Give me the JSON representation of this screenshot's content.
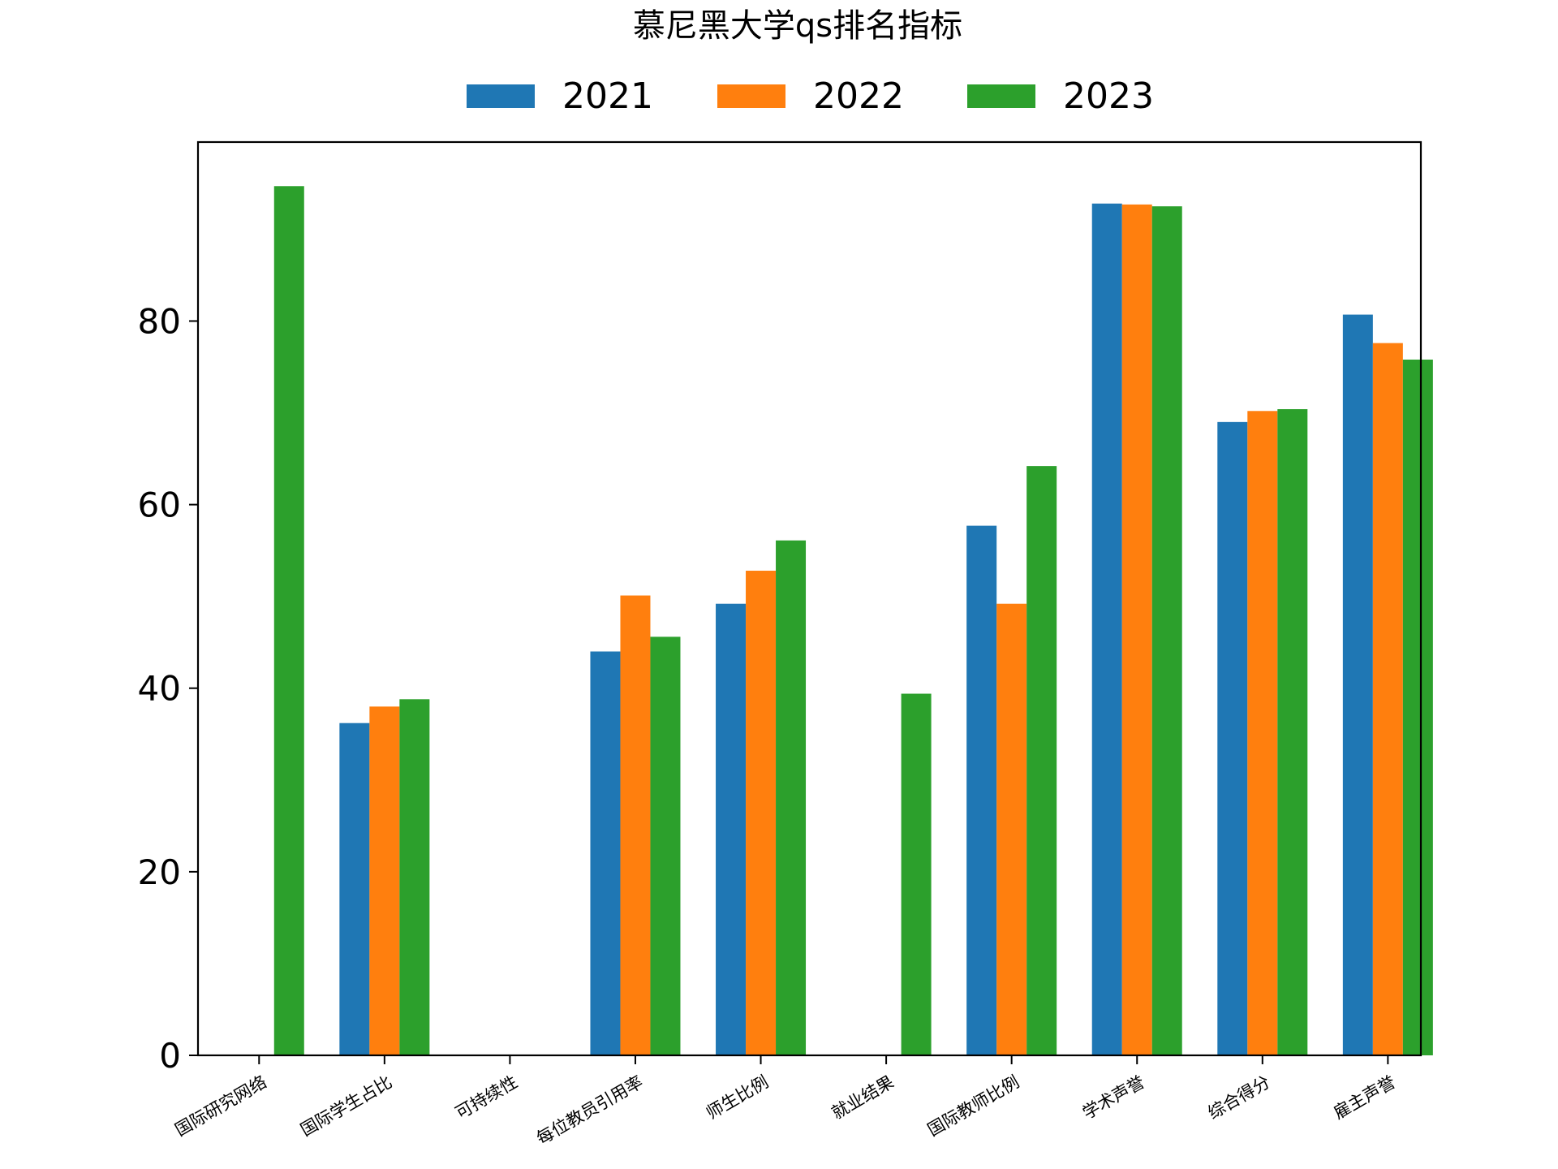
{
  "chart_data": {
    "type": "bar",
    "title": "慕尼黑大学qs排名指标",
    "xlabel": "",
    "ylabel": "",
    "categories": [
      "国际研究网络",
      "国际学生占比",
      "可持续性",
      "每位教员引用率",
      "师生比例",
      "就业结果",
      "国际教师比例",
      "学术声誉",
      "综合得分",
      "雇主声誉"
    ],
    "series": [
      {
        "name": "2021",
        "color": "#1f77b4",
        "values": [
          null,
          36.2,
          null,
          44.0,
          49.2,
          null,
          57.7,
          92.8,
          69.0,
          80.7
        ]
      },
      {
        "name": "2022",
        "color": "#ff7f0e",
        "values": [
          null,
          38.0,
          null,
          50.1,
          52.8,
          null,
          49.2,
          92.7,
          70.2,
          77.6
        ]
      },
      {
        "name": "2023",
        "color": "#2ca02c",
        "values": [
          94.7,
          38.8,
          null,
          45.6,
          56.1,
          39.4,
          64.2,
          92.5,
          70.4,
          75.8
        ]
      }
    ],
    "ylim": [
      0,
      99.5
    ],
    "yticks": [
      0,
      20,
      40,
      60,
      80
    ],
    "grid": false,
    "legend_position": "top-center"
  }
}
